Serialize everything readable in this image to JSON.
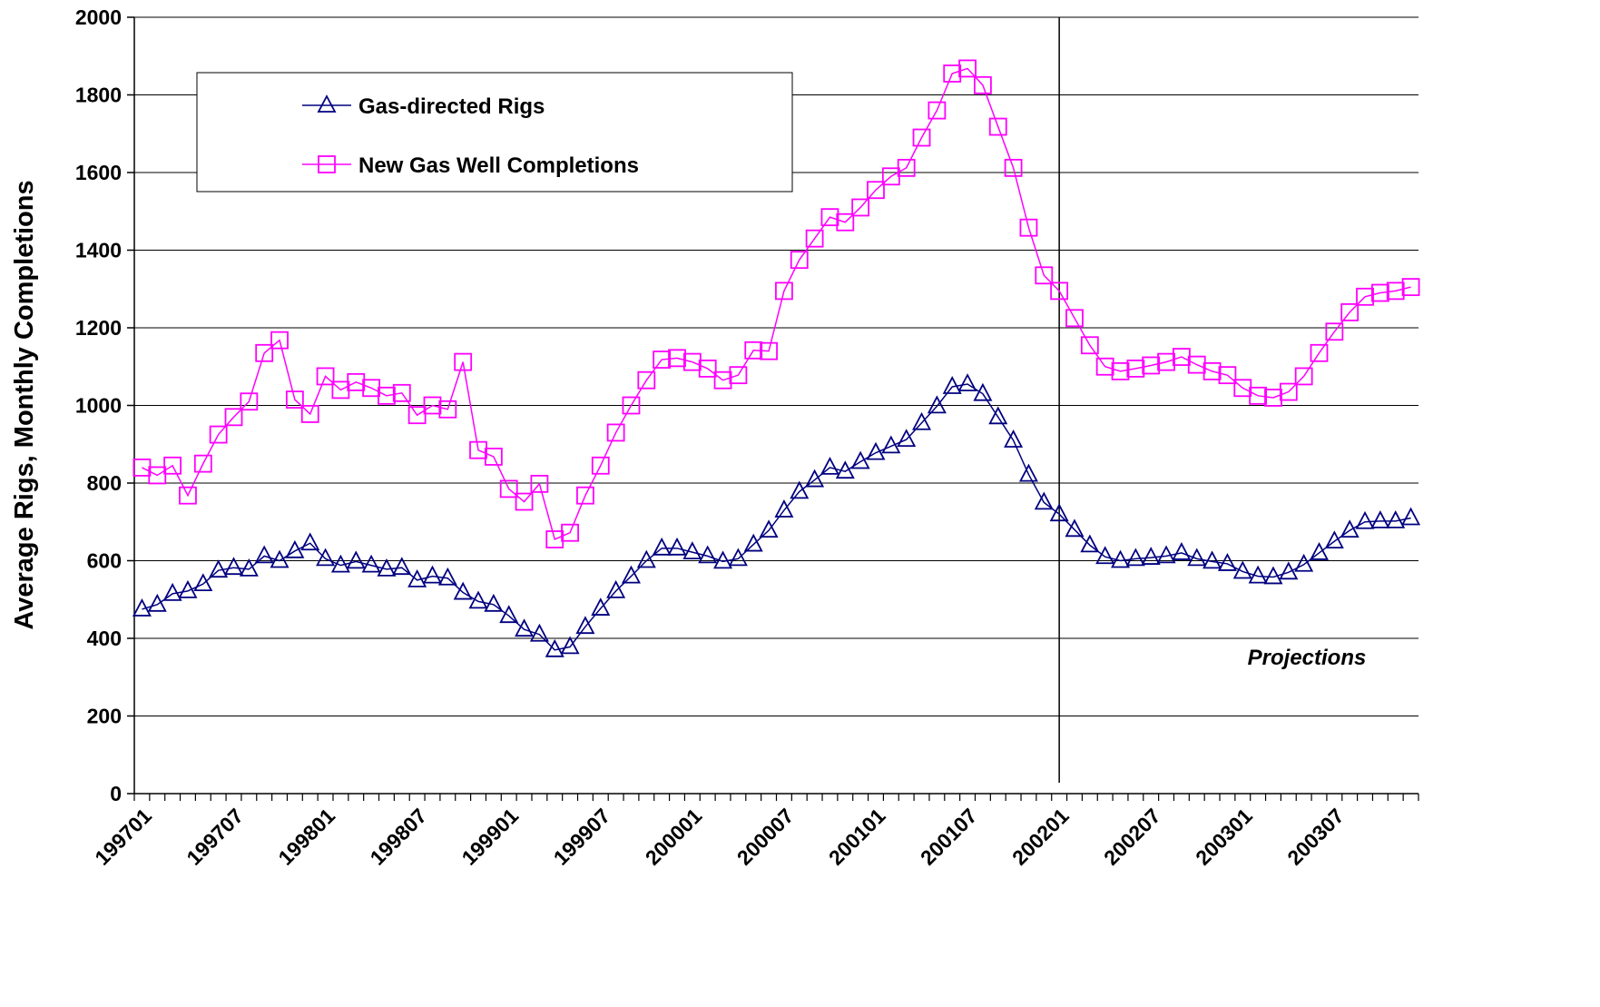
{
  "chart_data": {
    "type": "line",
    "y_label": "Average Rigs, Monthly Completions",
    "annotation": "Projections",
    "divider_index": 60,
    "categories": [
      "199701",
      null,
      null,
      null,
      null,
      null,
      "199707",
      null,
      null,
      null,
      null,
      null,
      "199801",
      null,
      null,
      null,
      null,
      null,
      "199807",
      null,
      null,
      null,
      null,
      null,
      "199901",
      null,
      null,
      null,
      null,
      null,
      "199907",
      null,
      null,
      null,
      null,
      null,
      "200001",
      null,
      null,
      null,
      null,
      null,
      "200007",
      null,
      null,
      null,
      null,
      null,
      "200101",
      null,
      null,
      null,
      null,
      null,
      "200107",
      null,
      null,
      null,
      null,
      null,
      "200201",
      null,
      null,
      null,
      null,
      null,
      "200207",
      null,
      null,
      null,
      null,
      null,
      "200301",
      null,
      null,
      null,
      null,
      null,
      "200307",
      null,
      null,
      null,
      null,
      null
    ],
    "series": [
      {
        "name": "Gas-directed Rigs",
        "color": "#000080",
        "marker": "triangle",
        "values": [
          475,
          487,
          515,
          522,
          540,
          575,
          582,
          578,
          612,
          600,
          625,
          645,
          605,
          588,
          598,
          588,
          578,
          582,
          550,
          560,
          555,
          518,
          495,
          487,
          458,
          423,
          410,
          370,
          378,
          430,
          477,
          522,
          560,
          600,
          632,
          632,
          622,
          612,
          598,
          605,
          642,
          678,
          730,
          778,
          808,
          840,
          830,
          855,
          878,
          895,
          912,
          955,
          998,
          1048,
          1055,
          1030,
          970,
          910,
          822,
          750,
          720,
          680,
          640,
          610,
          600,
          605,
          608,
          612,
          620,
          605,
          598,
          592,
          572,
          560,
          558,
          570,
          590,
          620,
          650,
          678,
          700,
          702,
          702,
          710
        ]
      },
      {
        "name": "New Gas Well Completions",
        "color": "#ff00ff",
        "marker": "square",
        "values": [
          840,
          820,
          845,
          768,
          850,
          925,
          970,
          1010,
          1135,
          1168,
          1015,
          978,
          1075,
          1040,
          1060,
          1045,
          1025,
          1032,
          975,
          1000,
          990,
          1112,
          885,
          868,
          785,
          752,
          798,
          655,
          672,
          768,
          845,
          930,
          1000,
          1065,
          1118,
          1122,
          1112,
          1095,
          1065,
          1078,
          1142,
          1140,
          1295,
          1375,
          1430,
          1485,
          1472,
          1510,
          1555,
          1590,
          1612,
          1690,
          1760,
          1855,
          1868,
          1825,
          1718,
          1612,
          1458,
          1335,
          1295,
          1225,
          1155,
          1100,
          1088,
          1095,
          1103,
          1112,
          1125,
          1105,
          1088,
          1078,
          1045,
          1025,
          1020,
          1035,
          1075,
          1135,
          1190,
          1240,
          1280,
          1290,
          1295,
          1305
        ]
      }
    ],
    "ylim": [
      0,
      2000
    ],
    "yticks": [
      0,
      200,
      400,
      600,
      800,
      1000,
      1200,
      1400,
      1600,
      1800,
      2000
    ],
    "grid": true
  }
}
